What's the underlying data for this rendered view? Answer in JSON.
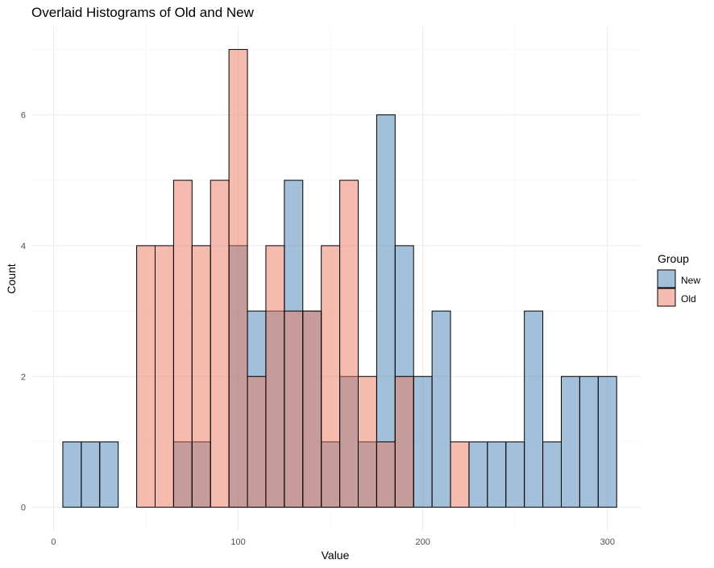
{
  "chart_data": {
    "type": "histogram",
    "title": "Overlaid Histograms of Old and New",
    "xlabel": "Value",
    "ylabel": "Count",
    "xlim": [
      -12,
      318
    ],
    "ylim": [
      -0.35,
      7.35
    ],
    "x_ticks": [
      0,
      100,
      200,
      300
    ],
    "y_ticks": [
      0,
      2,
      4,
      6
    ],
    "bin_width": 10,
    "bin_starts": [
      5,
      15,
      25,
      35,
      45,
      55,
      65,
      75,
      85,
      95,
      105,
      115,
      125,
      135,
      145,
      155,
      165,
      175,
      185,
      195,
      205,
      215,
      225,
      235,
      245,
      255,
      265,
      275,
      285,
      295
    ],
    "legend": {
      "title": "Group",
      "position": "right",
      "entries": [
        "New",
        "Old"
      ]
    },
    "series": [
      {
        "name": "New",
        "color": "#4682B4",
        "alpha": 0.5,
        "values": [
          1,
          1,
          1,
          0,
          0,
          0,
          1,
          1,
          0,
          4,
          3,
          3,
          5,
          3,
          1,
          2,
          1,
          6,
          4,
          2,
          3,
          0,
          1,
          1,
          1,
          3,
          1,
          2,
          2,
          2
        ]
      },
      {
        "name": "Old",
        "color": "#E9785E",
        "alpha": 0.5,
        "values": [
          0,
          0,
          0,
          0,
          4,
          4,
          5,
          4,
          5,
          7,
          2,
          4,
          3,
          3,
          4,
          5,
          2,
          1,
          2,
          0,
          0,
          1,
          0,
          0,
          0,
          0,
          0,
          0,
          0,
          0
        ]
      }
    ]
  }
}
